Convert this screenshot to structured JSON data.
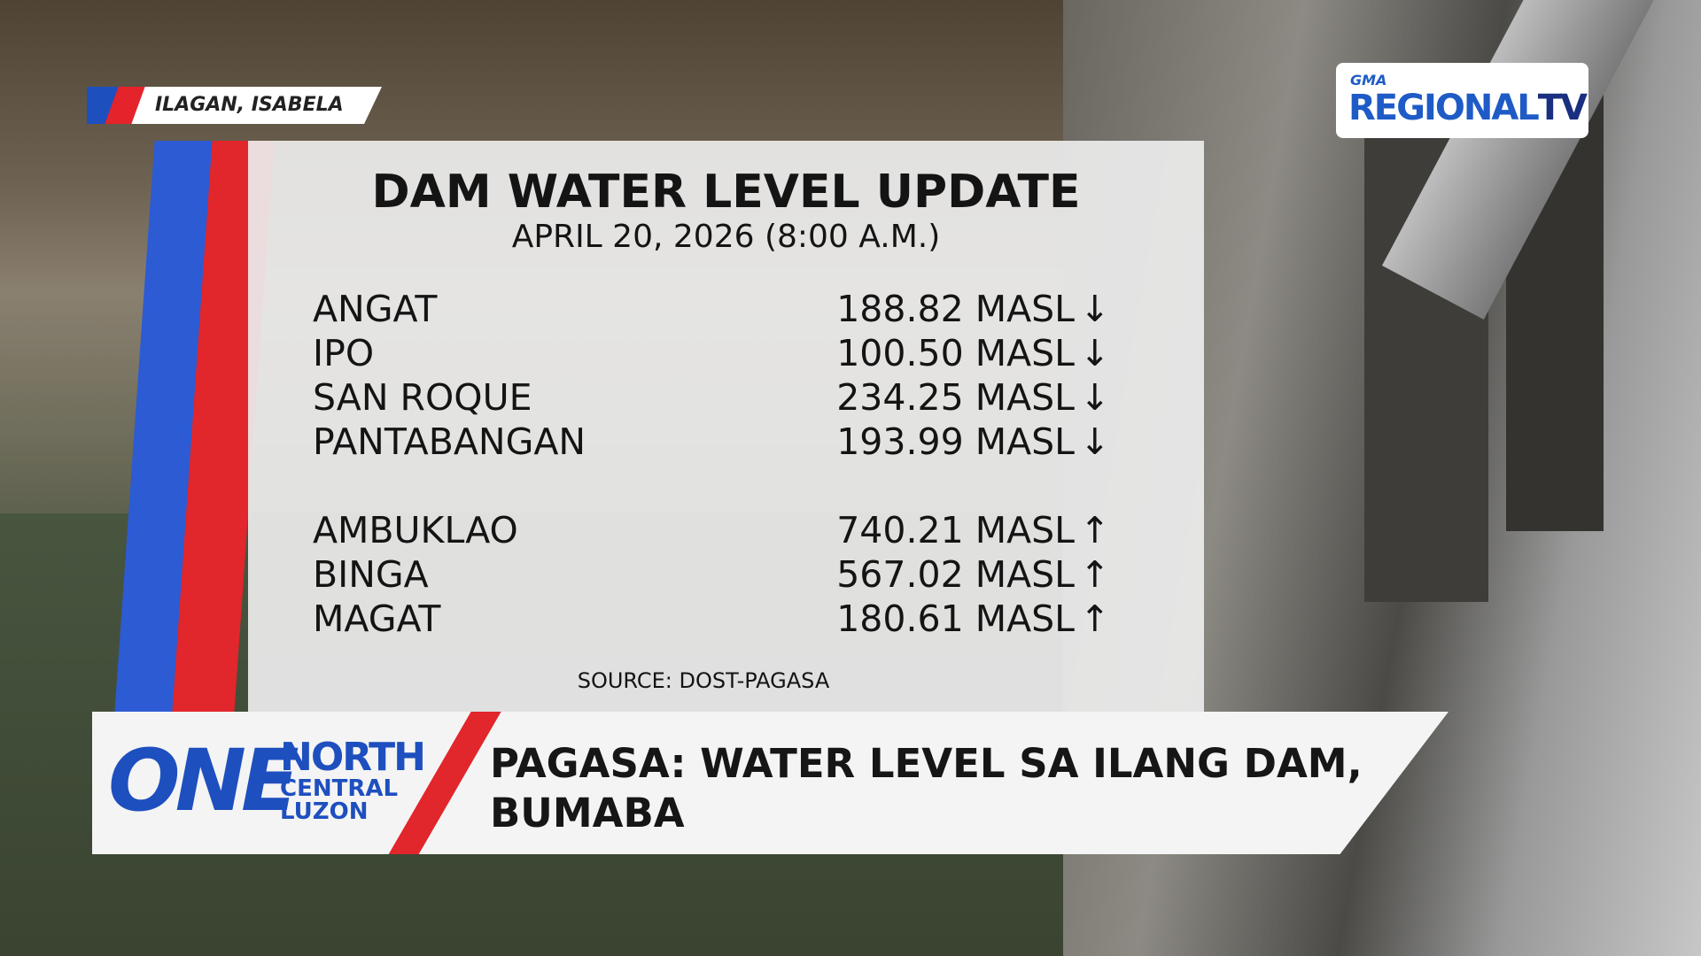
{
  "location": "ILAGAN, ISABELA",
  "channel_logo": {
    "network": "GMA",
    "brand": "REGIONAL",
    "suffix": "TV"
  },
  "card": {
    "title": "DAM WATER LEVEL UPDATE",
    "date": "APRIL 20, 2026 (8:00 A.M.)",
    "groups": [
      [
        {
          "dam": "ANGAT",
          "level": "188.82 MASL",
          "trend": "↓"
        },
        {
          "dam": "IPO",
          "level": "100.50 MASL",
          "trend": "↓"
        },
        {
          "dam": "SAN ROQUE",
          "level": "234.25 MASL",
          "trend": "↓"
        },
        {
          "dam": "PANTABANGAN",
          "level": "193.99 MASL",
          "trend": "↓"
        }
      ],
      [
        {
          "dam": "AMBUKLAO",
          "level": "740.21 MASL",
          "trend": "↑"
        },
        {
          "dam": "BINGA",
          "level": "567.02 MASL",
          "trend": "↑"
        },
        {
          "dam": "MAGAT",
          "level": "180.61 MASL",
          "trend": "↑"
        }
      ]
    ],
    "source": "SOURCE: DOST-PAGASA"
  },
  "lower_third": {
    "show_logo": {
      "one": "ONE",
      "north": "NORTH",
      "central": "CENTRAL",
      "luzon": "LUZON"
    },
    "headline": [
      "PAGASA: WATER LEVEL SA ILANG DAM,",
      "BUMABA"
    ]
  }
}
